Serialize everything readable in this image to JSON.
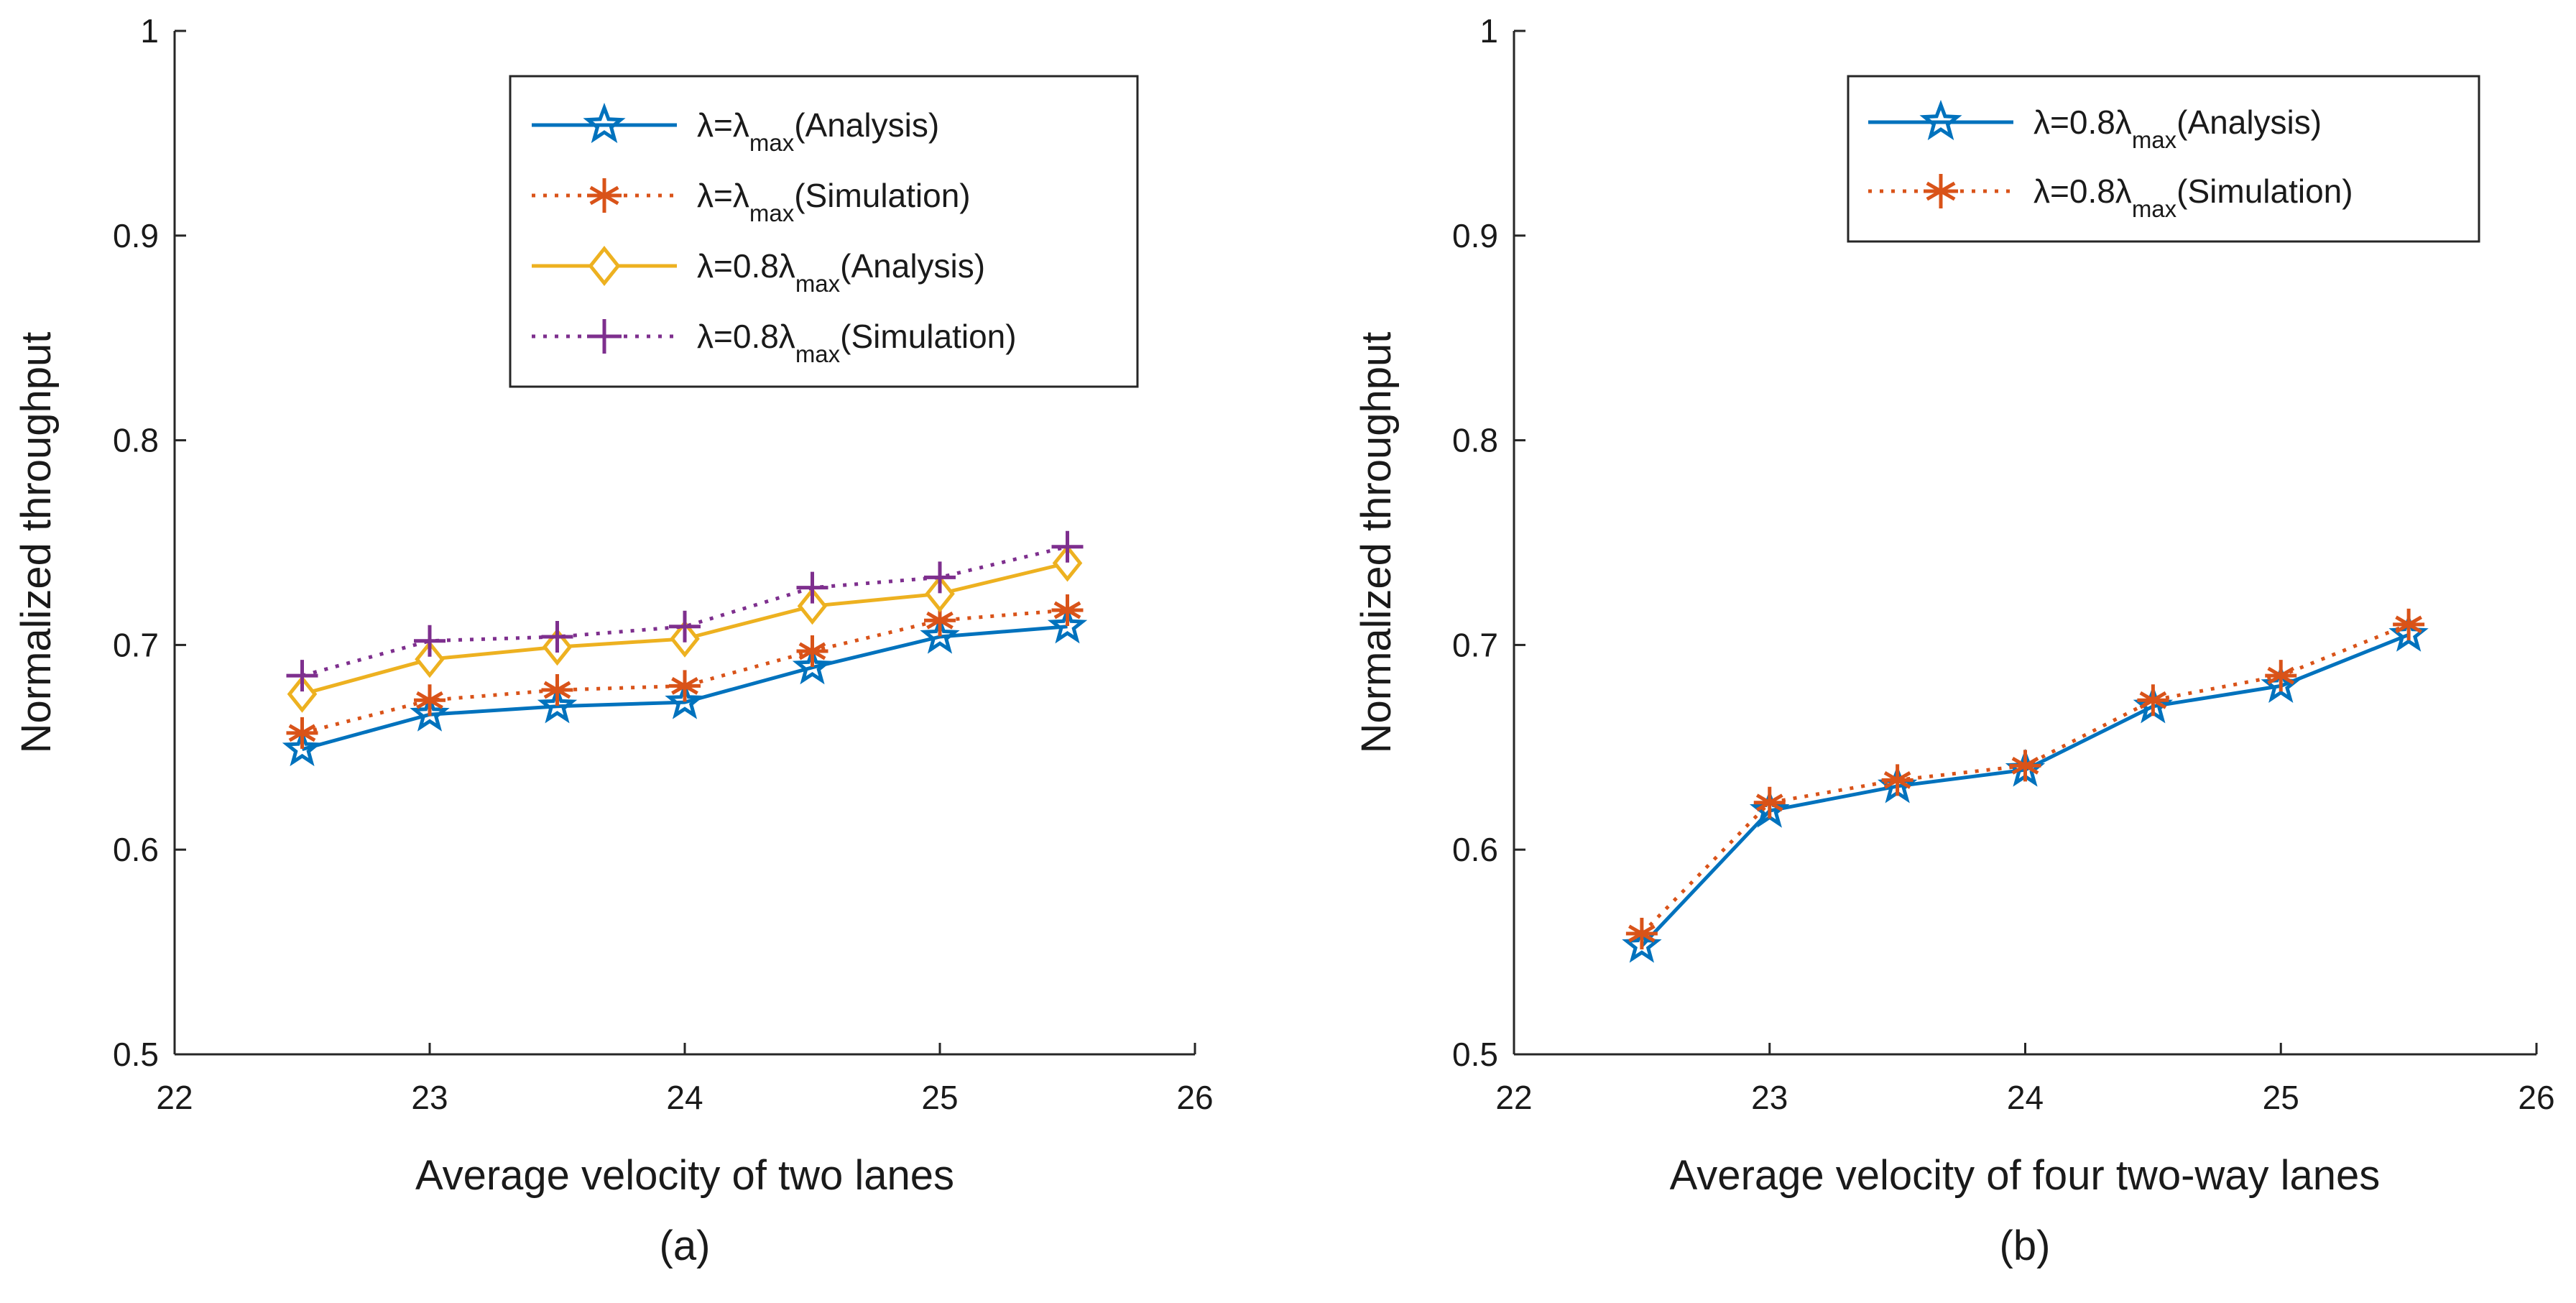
{
  "colors": {
    "blue": "#0072BD",
    "orange": "#D95319",
    "yellow": "#EDB120",
    "purple": "#7E2F8E",
    "axis": "#262626"
  },
  "chart_data": [
    {
      "type": "line",
      "caption": "(a)",
      "xlabel": "Average velocity of two lanes",
      "ylabel": "Normalized throughput",
      "xlim": [
        22,
        26
      ],
      "ylim": [
        0.5,
        1
      ],
      "xticks": [
        22,
        23,
        24,
        25,
        26
      ],
      "yticks": [
        0.5,
        0.6,
        0.7,
        0.8,
        0.9,
        1
      ],
      "ytick_labels": [
        "0.5",
        "0.6",
        "0.7",
        "0.8",
        "0.9",
        "1"
      ],
      "grid": false,
      "legend_position": "top-right",
      "x": [
        22.5,
        23,
        23.5,
        24,
        24.5,
        25,
        25.5
      ],
      "series": [
        {
          "name": "λ=λmax(Analysis)",
          "legend_pre": "λ=λ",
          "legend_sub": "max",
          "legend_post": "(Analysis)",
          "color": "#0072BD",
          "line": "solid",
          "marker": "pentagram",
          "values": [
            0.649,
            0.666,
            0.67,
            0.672,
            0.689,
            0.704,
            0.709
          ]
        },
        {
          "name": "λ=λmax(Simulation)",
          "legend_pre": "λ=λ",
          "legend_sub": "max",
          "legend_post": "(Simulation)",
          "color": "#D95319",
          "line": "dotted",
          "marker": "asterisk",
          "values": [
            0.657,
            0.673,
            0.678,
            0.68,
            0.697,
            0.712,
            0.717
          ]
        },
        {
          "name": "λ=0.8λmax(Analysis)",
          "legend_pre": "λ=0.8λ",
          "legend_sub": "max",
          "legend_post": "(Analysis)",
          "color": "#EDB120",
          "line": "solid",
          "marker": "diamond",
          "values": [
            0.676,
            0.693,
            0.699,
            0.703,
            0.719,
            0.725,
            0.74
          ]
        },
        {
          "name": "λ=0.8λmax(Simulation)",
          "legend_pre": "λ=0.8λ",
          "legend_sub": "max",
          "legend_post": "(Simulation)",
          "color": "#7E2F8E",
          "line": "dotted",
          "marker": "plus",
          "values": [
            0.685,
            0.702,
            0.704,
            0.709,
            0.728,
            0.733,
            0.748
          ]
        }
      ]
    },
    {
      "type": "line",
      "caption": "(b)",
      "xlabel": "Average velocity of four two-way lanes",
      "ylabel": "Normalized throughput",
      "xlim": [
        22,
        26
      ],
      "ylim": [
        0.5,
        1
      ],
      "xticks": [
        22,
        23,
        24,
        25,
        26
      ],
      "yticks": [
        0.5,
        0.6,
        0.7,
        0.8,
        0.9,
        1
      ],
      "ytick_labels": [
        "0.5",
        "0.6",
        "0.7",
        "0.8",
        "0.9",
        "1"
      ],
      "grid": false,
      "legend_position": "top-right",
      "x": [
        22.5,
        23,
        23.5,
        24,
        24.5,
        25,
        25.5
      ],
      "series": [
        {
          "name": "λ=0.8λmax(Analysis)",
          "legend_pre": "λ=0.8λ",
          "legend_sub": "max",
          "legend_post": "(Analysis)",
          "color": "#0072BD",
          "line": "solid",
          "marker": "pentagram",
          "values": [
            0.553,
            0.619,
            0.631,
            0.639,
            0.67,
            0.68,
            0.705
          ]
        },
        {
          "name": "λ=0.8λmax(Simulation)",
          "legend_pre": "λ=0.8λ",
          "legend_sub": "max",
          "legend_post": "(Simulation)",
          "color": "#D95319",
          "line": "dotted",
          "marker": "asterisk",
          "values": [
            0.559,
            0.623,
            0.634,
            0.641,
            0.673,
            0.685,
            0.71
          ]
        }
      ]
    }
  ]
}
